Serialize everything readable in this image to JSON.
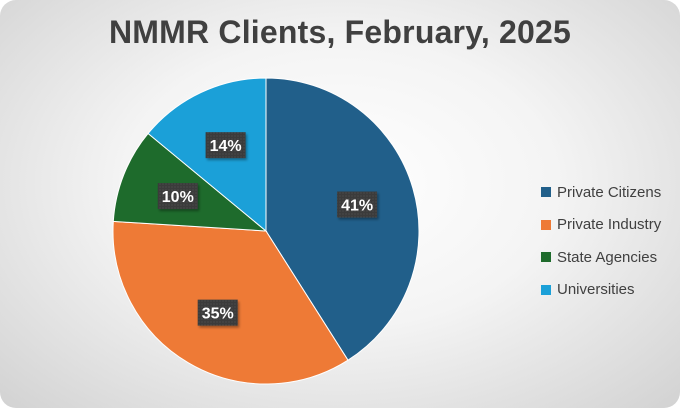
{
  "chart_data": {
    "type": "pie",
    "title": "NMMR Clients, February, 2025",
    "legend_position": "right",
    "slices": [
      {
        "name": "Private Citizens",
        "value": 41,
        "label": "41%",
        "color": "#215f8a"
      },
      {
        "name": "Private Industry",
        "value": 35,
        "label": "35%",
        "color": "#ee7a36"
      },
      {
        "name": "State Agencies",
        "value": 10,
        "label": "10%",
        "color": "#1e6b2c"
      },
      {
        "name": "Universities",
        "value": 14,
        "label": "14%",
        "color": "#1ba0d8"
      }
    ]
  }
}
